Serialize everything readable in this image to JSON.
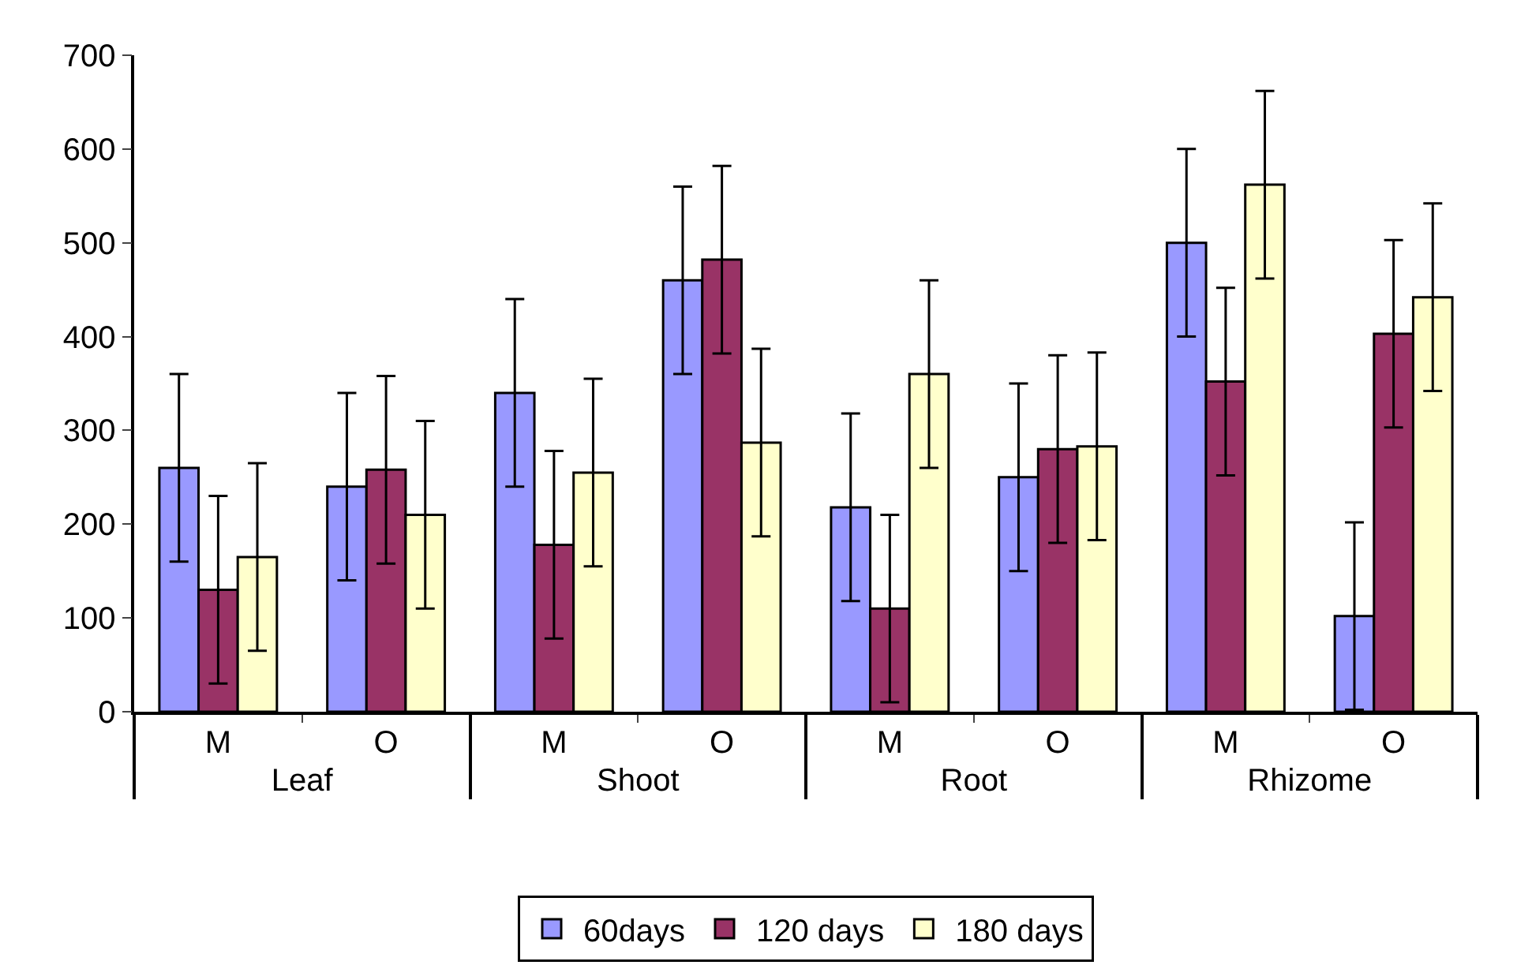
{
  "chart_data": {
    "type": "bar",
    "categories": [
      "M",
      "O",
      "M",
      "O",
      "M",
      "O",
      "M",
      "O"
    ],
    "annotations": [
      "Leaf",
      "Shoot",
      "Root",
      "Rhizome"
    ],
    "series": [
      {
        "name": "60days",
        "color": "#9999ff",
        "values": [
          260,
          240,
          340,
          460,
          218,
          250,
          500,
          102
        ],
        "errors": [
          100,
          100,
          100,
          100,
          100,
          100,
          100,
          100
        ]
      },
      {
        "name": "120 days",
        "color": "#993366",
        "values": [
          130,
          258,
          178,
          482,
          110,
          280,
          352,
          403
        ],
        "errors": [
          100,
          100,
          100,
          100,
          100,
          100,
          100,
          100
        ]
      },
      {
        "name": "180 days",
        "color": "#ffffcc",
        "values": [
          165,
          210,
          255,
          287,
          360,
          283,
          562,
          442
        ],
        "errors": [
          100,
          100,
          100,
          100,
          100,
          100,
          100,
          100
        ]
      }
    ],
    "ylim": [
      0,
      700
    ],
    "yticks": [
      0,
      100,
      200,
      300,
      400,
      500,
      600,
      700
    ],
    "grid": false,
    "legend": "bottom"
  }
}
